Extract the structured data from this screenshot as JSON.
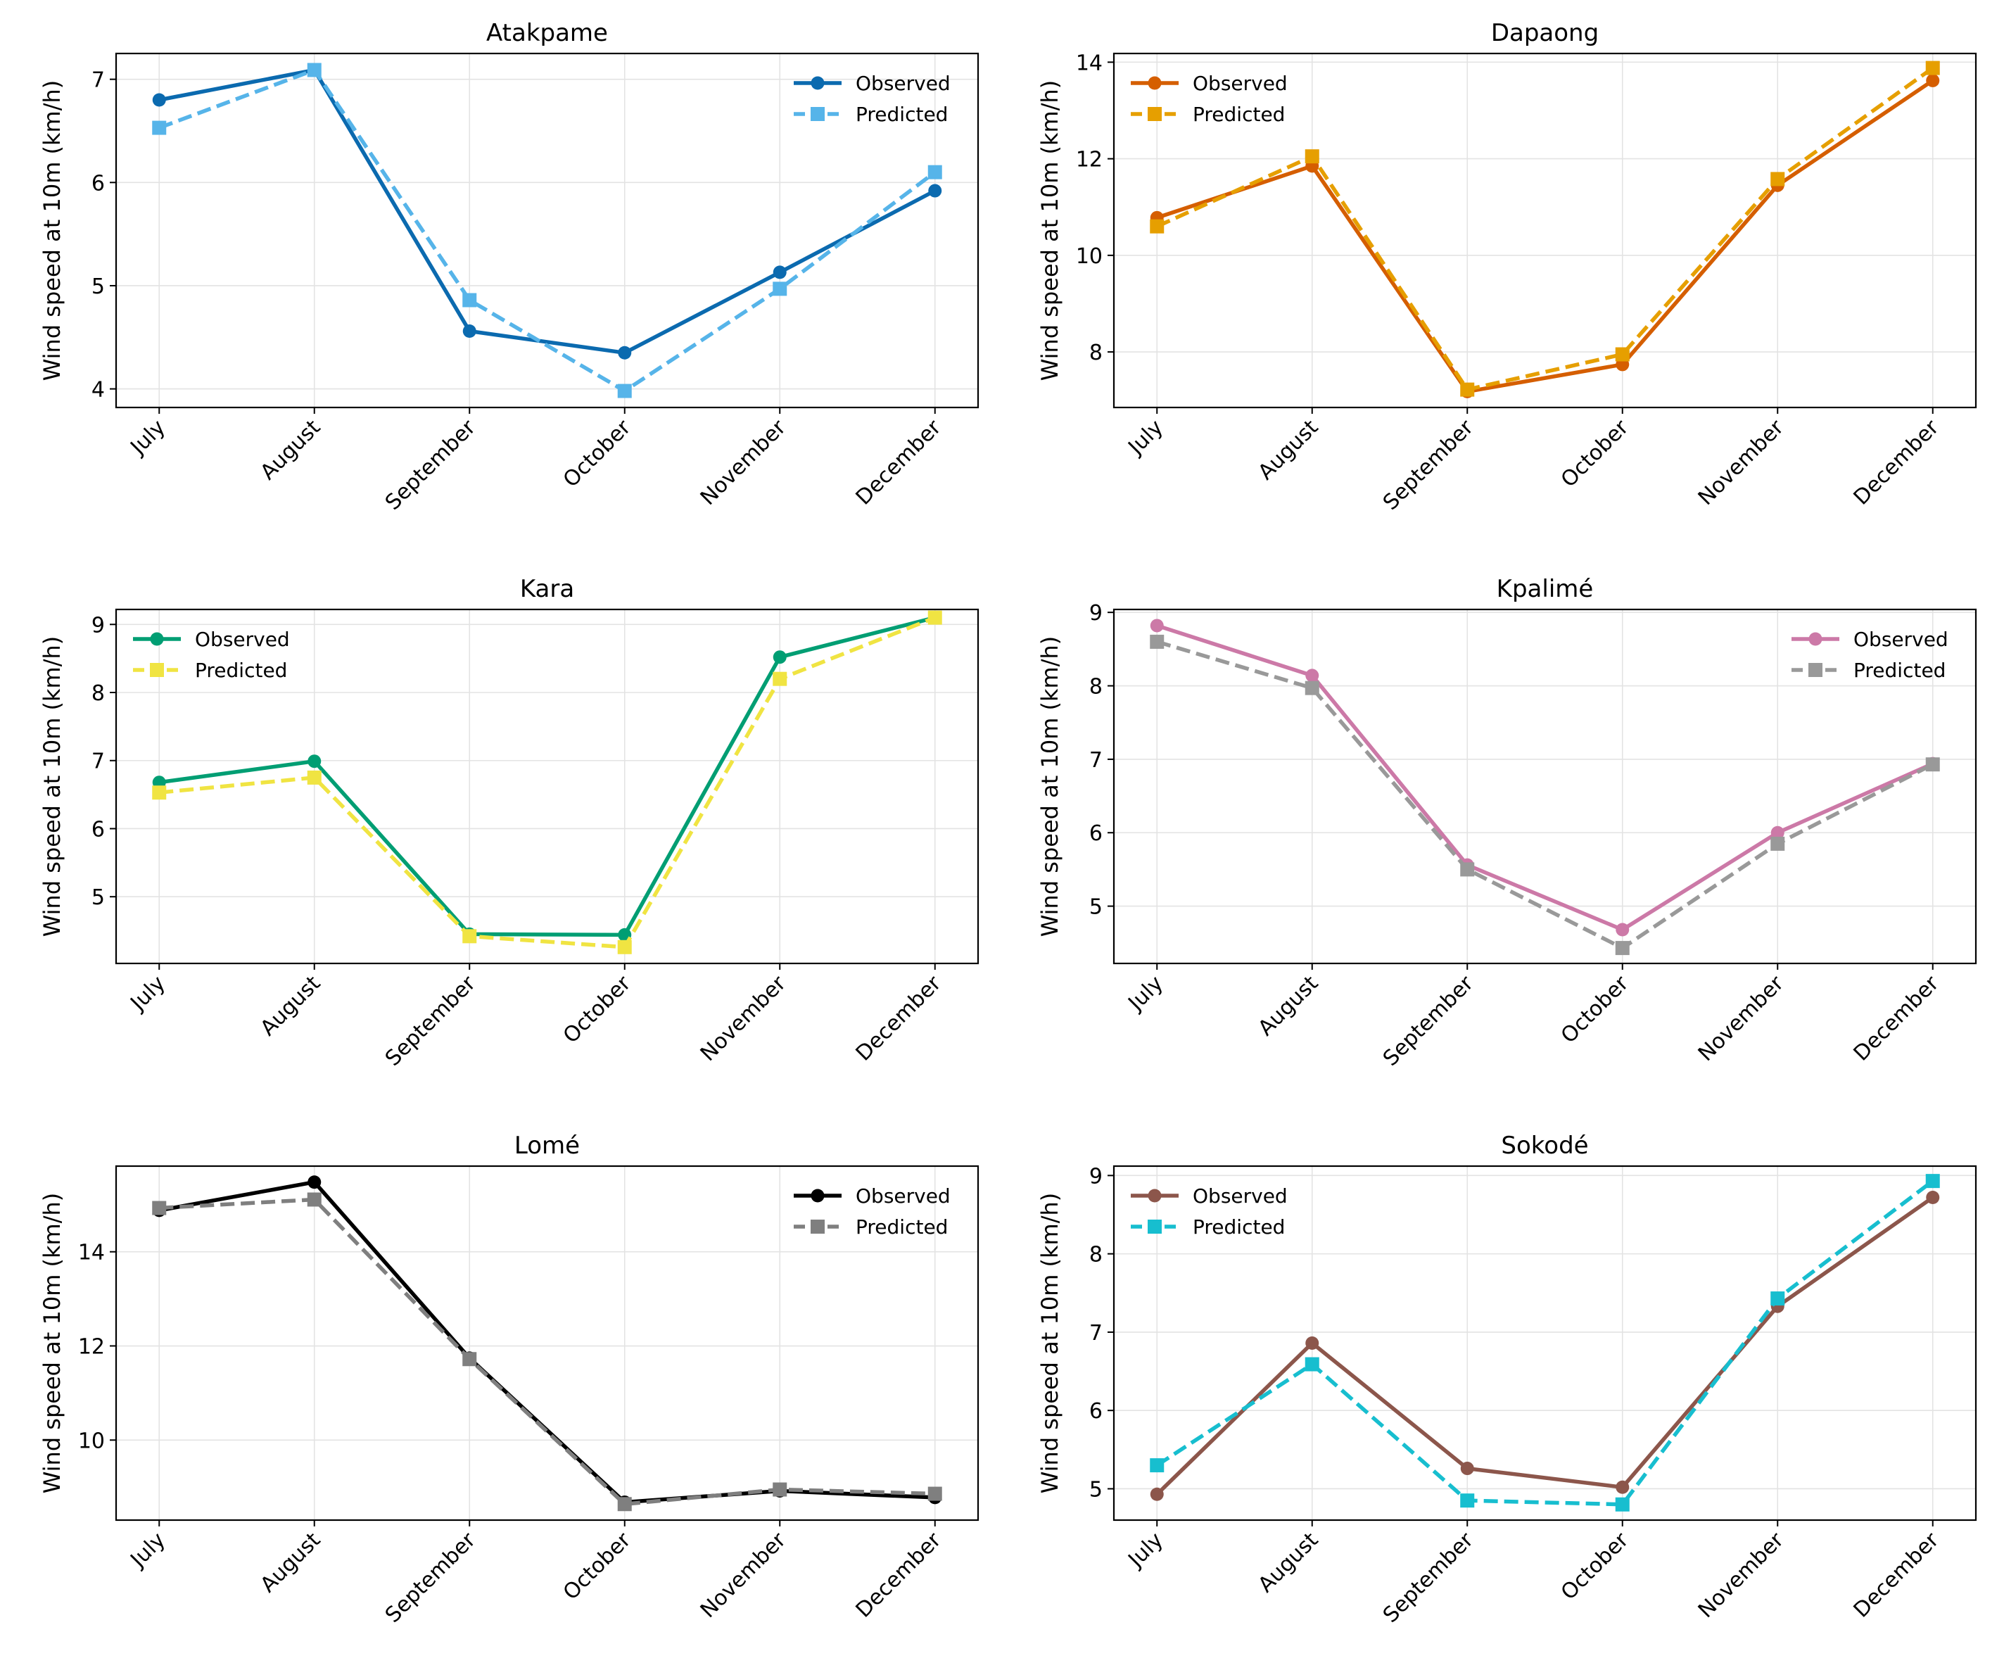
{
  "chart_data": [
    {
      "type": "line",
      "title": "Atakpame",
      "xlabel": "",
      "ylabel": "Wind speed at 10m (km/h)",
      "categories": [
        "July",
        "August",
        "September",
        "October",
        "November",
        "December"
      ],
      "ylim": [
        3.82,
        7.25
      ],
      "yticks": [
        4,
        5,
        6,
        7
      ],
      "grid": true,
      "legend": "top-right",
      "series": [
        {
          "name": "Observed",
          "values": [
            6.8,
            7.09,
            4.56,
            4.35,
            5.13,
            5.92
          ],
          "color": "#0b6aaf",
          "dash": "solid",
          "marker": "circle"
        },
        {
          "name": "Predicted",
          "values": [
            6.53,
            7.09,
            4.86,
            3.98,
            4.97,
            6.1
          ],
          "color": "#56b4e9",
          "dash": "dashed",
          "marker": "square"
        }
      ]
    },
    {
      "type": "line",
      "title": "Dapaong",
      "xlabel": "",
      "ylabel": "Wind speed at 10m (km/h)",
      "categories": [
        "July",
        "August",
        "September",
        "October",
        "November",
        "December"
      ],
      "ylim": [
        6.85,
        14.18
      ],
      "yticks": [
        8,
        10,
        12,
        14
      ],
      "grid": true,
      "legend": "top-left",
      "series": [
        {
          "name": "Observed",
          "values": [
            10.78,
            11.85,
            7.18,
            7.74,
            11.45,
            13.62
          ],
          "color": "#d55e00",
          "dash": "solid",
          "marker": "circle"
        },
        {
          "name": "Predicted",
          "values": [
            10.6,
            12.05,
            7.22,
            7.95,
            11.58,
            13.88
          ],
          "color": "#e69f00",
          "dash": "dashed",
          "marker": "square"
        }
      ]
    },
    {
      "type": "line",
      "title": "Kara",
      "xlabel": "",
      "ylabel": "Wind speed at 10m (km/h)",
      "categories": [
        "July",
        "August",
        "September",
        "October",
        "November",
        "December"
      ],
      "ylim": [
        4.02,
        9.22
      ],
      "yticks": [
        5,
        6,
        7,
        8,
        9
      ],
      "grid": true,
      "legend": "top-left",
      "series": [
        {
          "name": "Observed",
          "values": [
            6.68,
            6.99,
            4.45,
            4.44,
            8.52,
            9.1
          ],
          "color": "#009e73",
          "dash": "solid",
          "marker": "circle"
        },
        {
          "name": "Predicted",
          "values": [
            6.53,
            6.75,
            4.42,
            4.26,
            8.2,
            9.1
          ],
          "color": "#f0e442",
          "dash": "dashed",
          "marker": "square"
        }
      ]
    },
    {
      "type": "line",
      "title": "Kpalimé",
      "xlabel": "",
      "ylabel": "Wind speed at 10m (km/h)",
      "categories": [
        "July",
        "August",
        "September",
        "October",
        "November",
        "December"
      ],
      "ylim": [
        4.22,
        9.04
      ],
      "yticks": [
        5,
        6,
        7,
        8,
        9
      ],
      "grid": true,
      "legend": "top-right",
      "series": [
        {
          "name": "Observed",
          "values": [
            8.82,
            8.14,
            5.56,
            4.68,
            6.0,
            6.94
          ],
          "color": "#cc79a7",
          "dash": "solid",
          "marker": "circle"
        },
        {
          "name": "Predicted",
          "values": [
            8.6,
            7.97,
            5.5,
            4.43,
            5.85,
            6.93
          ],
          "color": "#999999",
          "dash": "dashed",
          "marker": "square"
        }
      ]
    },
    {
      "type": "line",
      "title": "Lomé",
      "xlabel": "",
      "ylabel": "Wind speed at 10m (km/h)",
      "categories": [
        "July",
        "August",
        "September",
        "October",
        "November",
        "December"
      ],
      "ylim": [
        8.3,
        15.82
      ],
      "yticks": [
        10,
        12,
        14
      ],
      "grid": true,
      "legend": "top-right",
      "series": [
        {
          "name": "Observed",
          "values": [
            14.88,
            15.48,
            11.74,
            8.68,
            8.92,
            8.78
          ],
          "color": "#000000",
          "dash": "solid",
          "marker": "circle"
        },
        {
          "name": "Predicted",
          "values": [
            14.93,
            15.11,
            11.72,
            8.64,
            8.95,
            8.86
          ],
          "color": "#7f7f7f",
          "dash": "dashed",
          "marker": "square"
        }
      ]
    },
    {
      "type": "line",
      "title": "Sokodé",
      "xlabel": "",
      "ylabel": "Wind speed at 10m (km/h)",
      "categories": [
        "July",
        "August",
        "September",
        "October",
        "November",
        "December"
      ],
      "ylim": [
        4.6,
        9.12
      ],
      "yticks": [
        5,
        6,
        7,
        8,
        9
      ],
      "grid": true,
      "legend": "top-left",
      "series": [
        {
          "name": "Observed",
          "values": [
            4.93,
            6.86,
            5.26,
            5.02,
            7.33,
            8.72
          ],
          "color": "#8c564b",
          "dash": "solid",
          "marker": "circle"
        },
        {
          "name": "Predicted",
          "values": [
            5.3,
            6.59,
            4.85,
            4.8,
            7.43,
            8.93
          ],
          "color": "#17becf",
          "dash": "dashed",
          "marker": "square"
        }
      ]
    }
  ]
}
